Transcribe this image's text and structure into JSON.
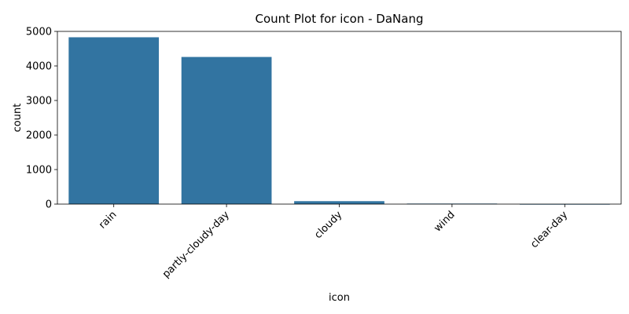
{
  "chart_data": {
    "type": "bar",
    "title": "Count Plot for icon - DaNang",
    "xlabel": "icon",
    "ylabel": "count",
    "categories": [
      "rain",
      "partly-cloudy-day",
      "cloudy",
      "wind",
      "clear-day"
    ],
    "values": [
      4830,
      4260,
      85,
      15,
      3
    ],
    "ylim": [
      0,
      5000
    ],
    "yticks": [
      0,
      1000,
      2000,
      3000,
      4000,
      5000
    ],
    "grid": false,
    "bar_color": "#3274a1"
  }
}
